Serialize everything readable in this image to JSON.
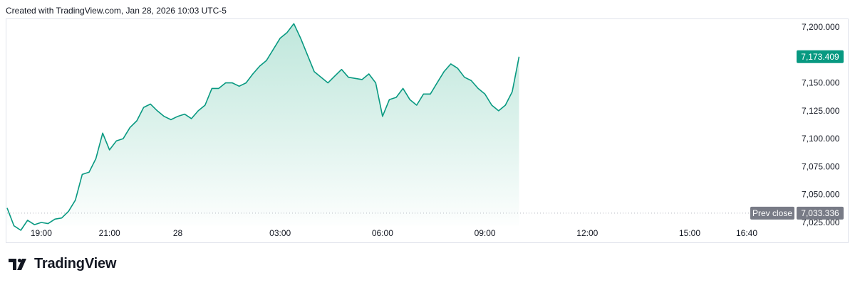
{
  "credit": "Created with TradingView.com, Jan 28, 2026 10:03 UTC-5",
  "brand": "TradingView",
  "colors": {
    "line": "#089981",
    "fill_top": "#b5e3d6",
    "fill_bottom": "#ffffff",
    "last_label_bg": "#089981",
    "prev_close_bg": "#787b86",
    "grid_dotted": "#b2b5be"
  },
  "icons": {
    "logo": "tradingview-logo-icon"
  },
  "chart_data": {
    "type": "area",
    "ylim": [
      7015,
      7210
    ],
    "y_ticks": [
      {
        "value": 7200,
        "label": "7,200.000"
      },
      {
        "value": 7175,
        "label": "7,175.000"
      },
      {
        "value": 7150,
        "label": "7,150.000"
      },
      {
        "value": 7125,
        "label": "7,125.000"
      },
      {
        "value": 7100,
        "label": "7,100.000"
      },
      {
        "value": 7075,
        "label": "7,075.000"
      },
      {
        "value": 7050,
        "label": "7,050.000"
      },
      {
        "value": 7025,
        "label": "7,025.000"
      }
    ],
    "x_ticks": [
      {
        "t": 1.0,
        "label": "19:00"
      },
      {
        "t": 3.0,
        "label": "21:00"
      },
      {
        "t": 5.0,
        "label": "28"
      },
      {
        "t": 8.0,
        "label": "03:00"
      },
      {
        "t": 11.0,
        "label": "06:00"
      },
      {
        "t": 14.0,
        "label": "09:00"
      },
      {
        "t": 17.0,
        "label": "12:00"
      },
      {
        "t": 20.0,
        "label": "15:00"
      },
      {
        "t": 21.67,
        "label": "16:40"
      }
    ],
    "xlim": [
      0.0,
      22.5
    ],
    "last_value": {
      "value": 7173.409,
      "label": "7,173.409"
    },
    "prev_close": {
      "value": 7033.336,
      "name": "Prev close",
      "label": "7,033.336"
    },
    "series": [
      {
        "x": [
          0.0,
          0.2,
          0.4,
          0.6,
          0.8,
          1.0,
          1.2,
          1.4,
          1.6,
          1.8,
          2.0,
          2.2,
          2.4,
          2.6,
          2.8,
          3.0,
          3.2,
          3.4,
          3.6,
          3.8,
          4.0,
          4.2,
          4.4,
          4.6,
          4.8,
          5.0,
          5.2,
          5.4,
          5.6,
          5.8,
          6.0,
          6.2,
          6.4,
          6.6,
          6.8,
          7.0,
          7.2,
          7.4,
          7.6,
          7.8,
          8.0,
          8.2,
          8.4,
          8.6,
          8.8,
          9.0,
          9.2,
          9.4,
          9.6,
          9.8,
          10.0,
          10.2,
          10.4,
          10.6,
          10.8,
          11.0,
          11.2,
          11.4,
          11.6,
          11.8,
          12.0,
          12.2,
          12.4,
          12.6,
          12.8,
          13.0,
          13.2,
          13.4,
          13.6,
          13.8,
          14.0,
          14.2,
          14.4,
          14.6,
          14.8,
          15.0
        ],
        "y": [
          7038,
          7022,
          7018,
          7027,
          7023,
          7025,
          7024,
          7028,
          7029,
          7035,
          7045,
          7068,
          7070,
          7082,
          7105,
          7090,
          7098,
          7100,
          7110,
          7116,
          7128,
          7131,
          7125,
          7120,
          7117,
          7120,
          7122,
          7118,
          7125,
          7130,
          7145,
          7145,
          7150,
          7150,
          7147,
          7150,
          7158,
          7165,
          7170,
          7180,
          7190,
          7195,
          7203,
          7190,
          7175,
          7160,
          7155,
          7150,
          7156,
          7162,
          7155,
          7154,
          7153,
          7158,
          7150,
          7120,
          7135,
          7137,
          7145,
          7135,
          7130,
          7140,
          7140,
          7150,
          7160,
          7167,
          7163,
          7155,
          7152,
          7145,
          7140,
          7130,
          7125,
          7130,
          7142,
          7173.409
        ]
      }
    ]
  }
}
